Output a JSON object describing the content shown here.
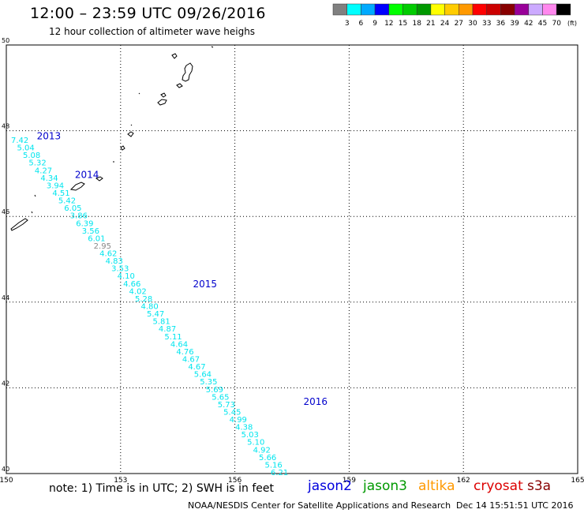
{
  "title": "12:00 – 23:59 UTC 09/26/2016",
  "subtitle": "12 hour collection of altimeter wave heighs",
  "legend": {
    "colors": [
      "#808080",
      "#00ffff",
      "#00aaff",
      "#0000ff",
      "#00ff00",
      "#00cc00",
      "#009900",
      "#ffff00",
      "#ffcc00",
      "#ff9900",
      "#ff0000",
      "#cc0000",
      "#880000",
      "#990099",
      "#ccaaff",
      "#ff88ee",
      "#000000"
    ],
    "labels": [
      "3",
      "6",
      "9",
      "12",
      "15",
      "18",
      "21",
      "24",
      "27",
      "30",
      "33",
      "36",
      "39",
      "42",
      "45",
      "70"
    ],
    "unit": "(ft)"
  },
  "axes": {
    "lon_ticks": [
      "150",
      "153",
      "156",
      "159",
      "162",
      "165"
    ],
    "lat_ticks": [
      "40",
      "42",
      "44",
      "46",
      "48",
      "50"
    ]
  },
  "track": {
    "color": "#00e5ee",
    "gray_color": "#888888",
    "values": [
      "7.42",
      "5.04",
      "5.08",
      "5.32",
      "4.27",
      "4.34",
      "3.94",
      "4.51",
      "5.42",
      "6.05",
      "3.86",
      "6.39",
      "3.56",
      "6.01",
      "2.95",
      "4.62",
      "4.83",
      "3.53",
      "4.10",
      "4.66",
      "4.02",
      "5.28",
      "4.80",
      "5.47",
      "5.81",
      "4.87",
      "5.11",
      "4.64",
      "4.76",
      "4.67",
      "4.67",
      "5.64",
      "5.35",
      "5.69",
      "5.65",
      "5.73",
      "5.45",
      "4.99",
      "4.38",
      "5.03",
      "5.10",
      "4.92",
      "5.66",
      "5.16",
      "6.21"
    ],
    "gray_index": 14
  },
  "years": [
    {
      "label": "2013",
      "lon": 150.8,
      "lat": 47.8
    },
    {
      "label": "2014",
      "lon": 151.8,
      "lat": 46.9
    },
    {
      "label": "2015",
      "lon": 154.9,
      "lat": 44.35
    },
    {
      "label": "2016",
      "lon": 157.8,
      "lat": 41.6
    }
  ],
  "year_color": "#0000cc",
  "note": "note: 1) Time is in UTC; 2) SWH is in feet",
  "satellites": [
    {
      "name": "jason2",
      "color": "#0000dd"
    },
    {
      "name": "jason3",
      "color": "#009900"
    },
    {
      "name": "altika",
      "color": "#ff9900"
    },
    {
      "name": "cryosat",
      "color": "#dd0000"
    },
    {
      "name": "s3a",
      "color": "#880000"
    }
  ],
  "credit": "NOAA/NESDIS Center for Satellite Applications and Research",
  "timestamp": "Dec 14 15:51:51 UTC 2016"
}
